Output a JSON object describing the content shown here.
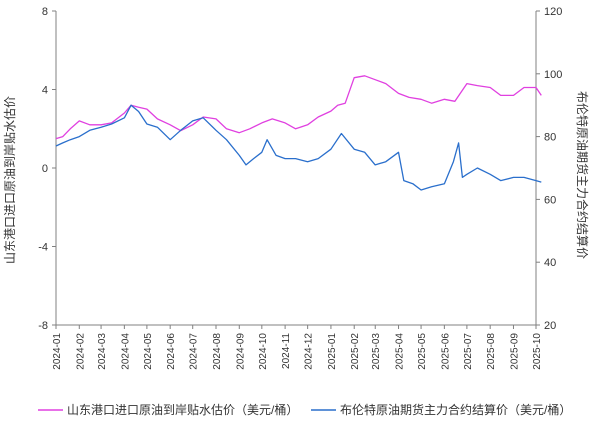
{
  "chart_data": {
    "type": "line",
    "title": "",
    "xlabel": "",
    "x_range": [
      "2024-01",
      "2025-10"
    ],
    "x_ticks": [
      "2024-01",
      "2024-02",
      "2024-03",
      "2024-04",
      "2024-05",
      "2024-06",
      "2024-07",
      "2024-08",
      "2024-09",
      "2024-10",
      "2024-11",
      "2024-12",
      "2025-01",
      "2025-02",
      "2025-03",
      "2025-04",
      "2025-05",
      "2025-06",
      "2025-07",
      "2025-08",
      "2025-09",
      "2025-10"
    ],
    "y_left": {
      "label": "山东港口进口原油到岸贴水估价",
      "range": [
        -8,
        8
      ],
      "ticks": [
        "8",
        "4",
        "0",
        "-4",
        "-8"
      ],
      "tick_values": [
        8,
        4,
        0,
        -4,
        -8
      ]
    },
    "y_right": {
      "label": "布伦特原油期货主力合约结算价",
      "range": [
        20,
        120
      ],
      "ticks": [
        "120",
        "100",
        "80",
        "60",
        "40",
        "20"
      ],
      "tick_values": [
        120,
        100,
        80,
        60,
        40,
        20
      ]
    },
    "grid": false,
    "legend_position": "bottom",
    "colors": {
      "premium": "#e040e0",
      "brent": "#2a6fcc",
      "axis": "#808080",
      "text": "#333333"
    },
    "series": [
      {
        "name": "山东港口进口原油到岸贴水估价（美元/桶）",
        "axis": "left",
        "color": "#e040e0",
        "x": [
          "2024-01-01",
          "2024-01-10",
          "2024-01-20",
          "2024-02-01",
          "2024-02-15",
          "2024-03-01",
          "2024-03-15",
          "2024-04-01",
          "2024-04-10",
          "2024-04-20",
          "2024-05-01",
          "2024-05-15",
          "2024-06-01",
          "2024-06-15",
          "2024-07-01",
          "2024-07-15",
          "2024-08-01",
          "2024-08-15",
          "2024-09-01",
          "2024-09-15",
          "2024-10-01",
          "2024-10-15",
          "2024-11-01",
          "2024-11-15",
          "2024-12-01",
          "2024-12-15",
          "2025-01-01",
          "2025-01-10",
          "2025-01-20",
          "2025-02-01",
          "2025-02-15",
          "2025-03-01",
          "2025-03-15",
          "2025-04-01",
          "2025-04-15",
          "2025-05-01",
          "2025-05-15",
          "2025-06-01",
          "2025-06-15",
          "2025-07-01",
          "2025-07-15",
          "2025-08-01",
          "2025-08-15",
          "2025-09-01",
          "2025-09-15",
          "2025-10-01",
          "2025-10-08"
        ],
        "values": [
          1.5,
          1.6,
          2.0,
          2.4,
          2.2,
          2.2,
          2.3,
          2.8,
          3.2,
          3.1,
          3.0,
          2.5,
          2.2,
          1.9,
          2.2,
          2.6,
          2.5,
          2.0,
          1.8,
          2.0,
          2.3,
          2.5,
          2.3,
          2.0,
          2.2,
          2.6,
          2.9,
          3.2,
          3.3,
          4.6,
          4.7,
          4.5,
          4.3,
          3.8,
          3.6,
          3.5,
          3.3,
          3.5,
          3.4,
          4.3,
          4.2,
          4.1,
          3.7,
          3.7,
          4.1,
          4.1,
          3.7
        ]
      },
      {
        "name": "布伦特原油期货主力合约结算价（美元/桶）",
        "axis": "right",
        "color": "#2a6fcc",
        "x": [
          "2024-01-01",
          "2024-01-10",
          "2024-01-20",
          "2024-02-01",
          "2024-02-15",
          "2024-03-01",
          "2024-03-15",
          "2024-04-01",
          "2024-04-10",
          "2024-04-20",
          "2024-05-01",
          "2024-05-15",
          "2024-06-01",
          "2024-06-15",
          "2024-07-01",
          "2024-07-15",
          "2024-08-01",
          "2024-08-15",
          "2024-09-01",
          "2024-09-10",
          "2024-09-20",
          "2024-10-01",
          "2024-10-08",
          "2024-10-20",
          "2024-11-01",
          "2024-11-15",
          "2024-12-01",
          "2024-12-15",
          "2025-01-01",
          "2025-01-15",
          "2025-02-01",
          "2025-02-15",
          "2025-03-01",
          "2025-03-15",
          "2025-04-01",
          "2025-04-08",
          "2025-04-20",
          "2025-05-01",
          "2025-05-15",
          "2025-06-01",
          "2025-06-13",
          "2025-06-20",
          "2025-06-25",
          "2025-07-01",
          "2025-07-15",
          "2025-08-01",
          "2025-08-15",
          "2025-09-01",
          "2025-09-15",
          "2025-10-01",
          "2025-10-08"
        ],
        "values": [
          77,
          78,
          79,
          80,
          82,
          83,
          84,
          86,
          90,
          88,
          84,
          83,
          79,
          82,
          85,
          86,
          82,
          79,
          74,
          71,
          73,
          75,
          79,
          74,
          73,
          73,
          72,
          73,
          76,
          81,
          76,
          75,
          71,
          72,
          75,
          66,
          65,
          63,
          64,
          65,
          72,
          78,
          67,
          68,
          70,
          68,
          66,
          67,
          67,
          66,
          65.5
        ]
      }
    ]
  }
}
